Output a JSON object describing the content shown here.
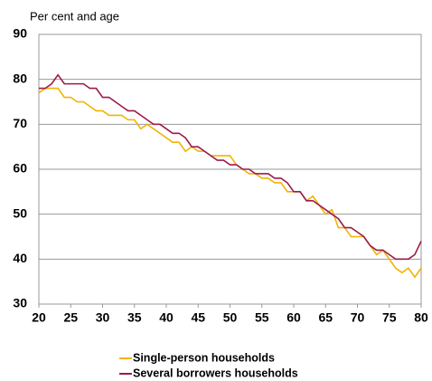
{
  "chart_data": {
    "type": "line",
    "y_label": "Per cent and age",
    "x": [
      20,
      21,
      22,
      23,
      24,
      25,
      26,
      27,
      28,
      29,
      30,
      31,
      32,
      33,
      34,
      35,
      36,
      37,
      38,
      39,
      40,
      41,
      42,
      43,
      44,
      45,
      46,
      47,
      48,
      49,
      50,
      51,
      52,
      53,
      54,
      55,
      56,
      57,
      58,
      59,
      60,
      61,
      62,
      63,
      64,
      65,
      66,
      67,
      68,
      69,
      70,
      71,
      72,
      73,
      74,
      75,
      76,
      77,
      78,
      79,
      80
    ],
    "series": [
      {
        "name": "Single-person households",
        "color": "#f0b400",
        "values": [
          77,
          78,
          78,
          78,
          76,
          76,
          75,
          75,
          74,
          73,
          73,
          72,
          72,
          72,
          71,
          71,
          69,
          70,
          69,
          68,
          67,
          66,
          66,
          64,
          65,
          64,
          64,
          63,
          63,
          63,
          63,
          61,
          60,
          59,
          59,
          58,
          58,
          57,
          57,
          55,
          55,
          55,
          53,
          54,
          52,
          50,
          51,
          47,
          47,
          45,
          45,
          45,
          43,
          41,
          42,
          40,
          38,
          37,
          38,
          36,
          38
        ]
      },
      {
        "name": "Several borrowers households",
        "color": "#9b1b4d",
        "values": [
          78,
          78,
          79,
          81,
          79,
          79,
          79,
          79,
          78,
          78,
          76,
          76,
          75,
          74,
          73,
          73,
          72,
          71,
          70,
          70,
          69,
          68,
          68,
          67,
          65,
          65,
          64,
          63,
          62,
          62,
          61,
          61,
          60,
          60,
          59,
          59,
          59,
          58,
          58,
          57,
          55,
          55,
          53,
          53,
          52,
          51,
          50,
          49,
          47,
          47,
          46,
          45,
          43,
          42,
          42,
          41,
          40,
          40,
          40,
          41,
          44
        ]
      }
    ],
    "xlim": [
      20,
      80
    ],
    "xticks": [
      20,
      25,
      30,
      35,
      40,
      45,
      50,
      55,
      60,
      65,
      70,
      75,
      80
    ],
    "ylim": [
      30,
      90
    ],
    "yticks": [
      30,
      40,
      50,
      60,
      70,
      80,
      90
    ],
    "grid": true
  }
}
